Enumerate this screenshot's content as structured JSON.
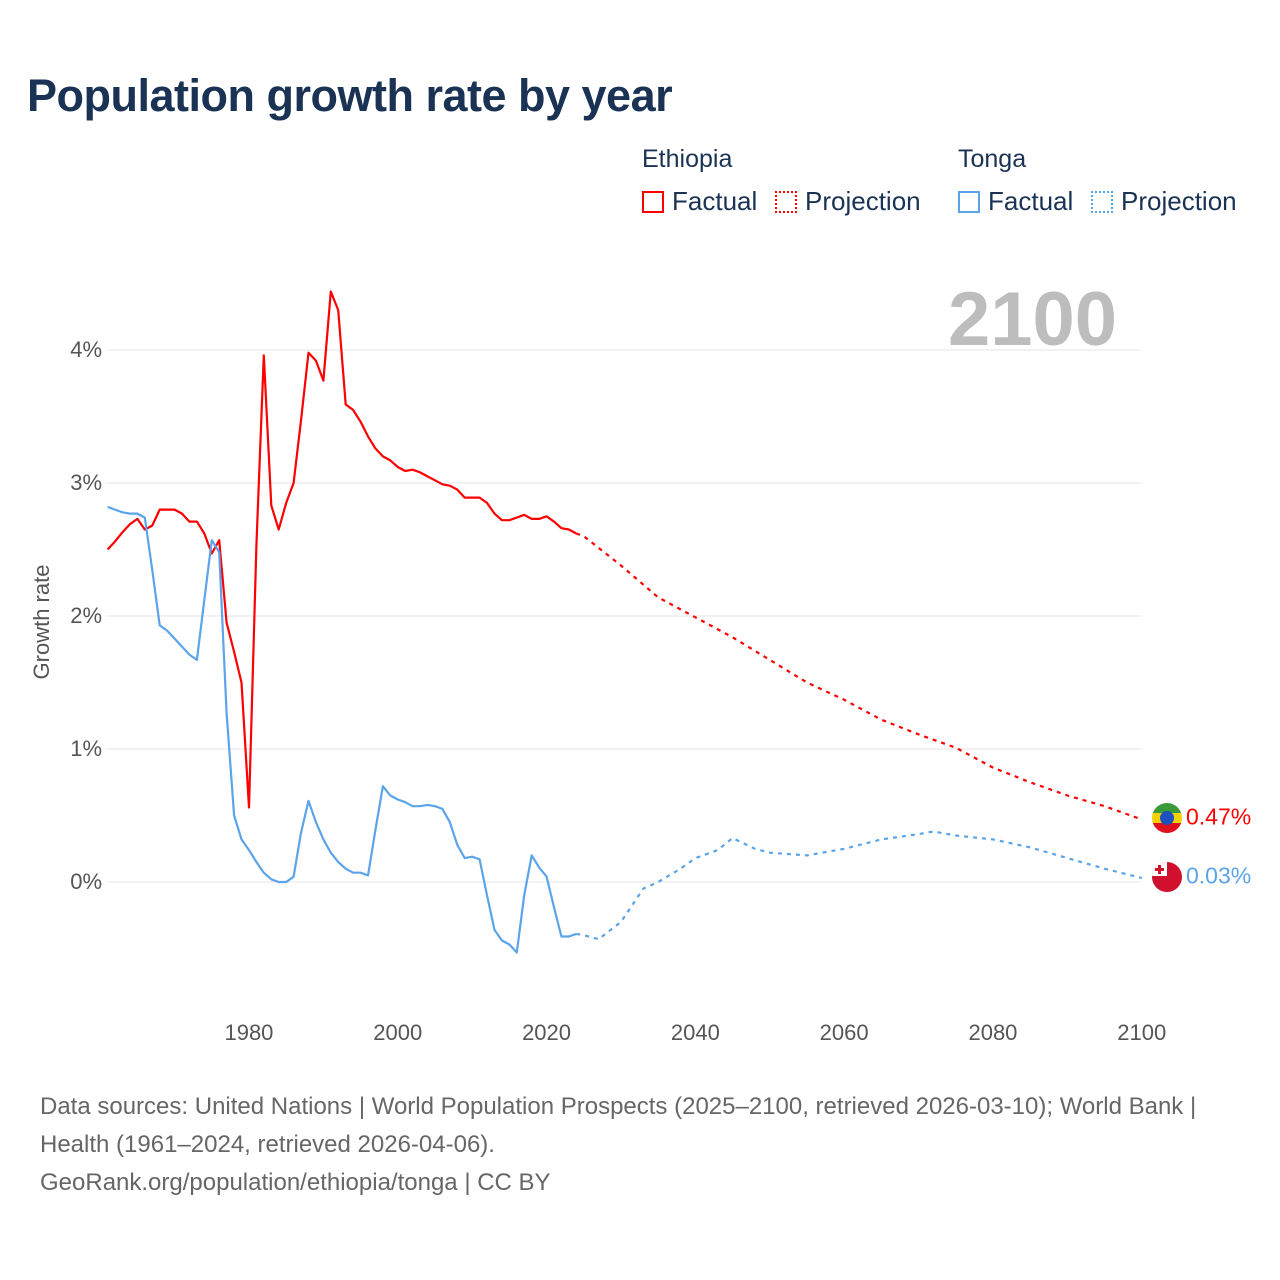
{
  "title": "Population growth rate by year",
  "legend": {
    "groups": [
      {
        "name": "Ethiopia",
        "factual": "Factual",
        "projection": "Projection",
        "color": "#ff0000"
      },
      {
        "name": "Tonga",
        "factual": "Factual",
        "projection": "Projection",
        "color": "#5ba4ea"
      }
    ]
  },
  "current_year": "2100",
  "end_labels": {
    "ethiopia": "0.47%",
    "tonga": "0.03%"
  },
  "footer": {
    "sources": "Data sources: United Nations | World Population Prospects (2025–2100, retrieved 2026-03-10); World Bank | Health (1961–2024, retrieved 2026-04-06).",
    "link": "GeoRank.org/population/ethiopia/tonga | CC BY"
  },
  "chart_data": {
    "type": "line",
    "title": "Population growth rate by year",
    "xlabel": "",
    "ylabel": "Growth rate",
    "xlim": [
      1961,
      2100
    ],
    "ylim": [
      -0.9,
      4.9
    ],
    "grid": true,
    "yticks": [
      {
        "v": 0,
        "label": "0%"
      },
      {
        "v": 1,
        "label": "1%"
      },
      {
        "v": 2,
        "label": "2%"
      },
      {
        "v": 3,
        "label": "3%"
      },
      {
        "v": 4,
        "label": "4%"
      }
    ],
    "xticks": [
      {
        "v": 1980,
        "label": "1980"
      },
      {
        "v": 2000,
        "label": "2000"
      },
      {
        "v": 2020,
        "label": "2020"
      },
      {
        "v": 2040,
        "label": "2040"
      },
      {
        "v": 2060,
        "label": "2060"
      },
      {
        "v": 2080,
        "label": "2080"
      },
      {
        "v": 2100,
        "label": "2100"
      }
    ],
    "legend_position": "top-right",
    "series": [
      {
        "name": "Ethiopia Factual",
        "color": "#ff0000",
        "dashed": false,
        "x": [
          1961,
          1962,
          1963,
          1964,
          1965,
          1966,
          1967,
          1968,
          1969,
          1970,
          1971,
          1972,
          1973,
          1974,
          1975,
          1976,
          1977,
          1978,
          1979,
          1980,
          1981,
          1982,
          1983,
          1984,
          1985,
          1986,
          1987,
          1988,
          1989,
          1990,
          1991,
          1992,
          1993,
          1994,
          1995,
          1996,
          1997,
          1998,
          1999,
          2000,
          2001,
          2002,
          2003,
          2004,
          2005,
          2006,
          2007,
          2008,
          2009,
          2010,
          2011,
          2012,
          2013,
          2014,
          2015,
          2016,
          2017,
          2018,
          2019,
          2020,
          2021,
          2022,
          2023,
          2024
        ],
        "y": [
          2.5,
          2.56,
          2.63,
          2.69,
          2.73,
          2.65,
          2.68,
          2.8,
          2.8,
          2.8,
          2.77,
          2.71,
          2.71,
          2.62,
          2.47,
          2.57,
          1.95,
          1.73,
          1.5,
          0.56,
          2.53,
          3.96,
          2.83,
          2.65,
          2.85,
          3.0,
          3.47,
          3.98,
          3.92,
          3.77,
          4.44,
          4.3,
          3.59,
          3.55,
          3.46,
          3.35,
          3.26,
          3.2,
          3.17,
          3.12,
          3.09,
          3.1,
          3.08,
          3.05,
          3.02,
          2.99,
          2.98,
          2.95,
          2.89,
          2.89,
          2.89,
          2.85,
          2.77,
          2.72,
          2.72,
          2.74,
          2.76,
          2.73,
          2.73,
          2.75,
          2.71,
          2.66,
          2.65,
          2.62
        ]
      },
      {
        "name": "Ethiopia Projection",
        "color": "#ff0000",
        "dashed": true,
        "x": [
          2024,
          2025,
          2030,
          2035,
          2040,
          2045,
          2050,
          2055,
          2060,
          2065,
          2070,
          2075,
          2080,
          2085,
          2090,
          2095,
          2100
        ],
        "y": [
          2.62,
          2.6,
          2.38,
          2.14,
          1.99,
          1.84,
          1.67,
          1.5,
          1.37,
          1.22,
          1.11,
          1.01,
          0.86,
          0.75,
          0.65,
          0.57,
          0.47
        ]
      },
      {
        "name": "Tonga Factual",
        "color": "#5ba4ea",
        "dashed": false,
        "x": [
          1961,
          1962,
          1963,
          1964,
          1965,
          1966,
          1967,
          1968,
          1969,
          1970,
          1971,
          1972,
          1973,
          1974,
          1975,
          1976,
          1977,
          1978,
          1979,
          1980,
          1981,
          1982,
          1983,
          1984,
          1985,
          1986,
          1987,
          1988,
          1989,
          1990,
          1991,
          1992,
          1993,
          1994,
          1995,
          1996,
          1997,
          1998,
          1999,
          2000,
          2001,
          2002,
          2003,
          2004,
          2005,
          2006,
          2007,
          2008,
          2009,
          2010,
          2011,
          2012,
          2013,
          2014,
          2015,
          2016,
          2017,
          2018,
          2019,
          2020,
          2021,
          2022,
          2023,
          2024
        ],
        "y": [
          2.82,
          2.8,
          2.78,
          2.77,
          2.77,
          2.74,
          2.35,
          1.93,
          1.89,
          1.83,
          1.77,
          1.71,
          1.67,
          2.12,
          2.57,
          2.48,
          1.27,
          0.5,
          0.32,
          0.24,
          0.15,
          0.07,
          0.02,
          0.0,
          0.0,
          0.04,
          0.37,
          0.61,
          0.45,
          0.32,
          0.22,
          0.15,
          0.1,
          0.07,
          0.07,
          0.05,
          0.39,
          0.72,
          0.65,
          0.62,
          0.6,
          0.57,
          0.57,
          0.58,
          0.57,
          0.55,
          0.45,
          0.28,
          0.18,
          0.19,
          0.17,
          -0.1,
          -0.36,
          -0.44,
          -0.47,
          -0.53,
          -0.1,
          0.2,
          0.11,
          0.04,
          -0.19,
          -0.41,
          -0.41,
          -0.39
        ]
      },
      {
        "name": "Tonga Projection",
        "color": "#5ba4ea",
        "dashed": true,
        "x": [
          2024,
          2025,
          2027,
          2030,
          2033,
          2035,
          2038,
          2040,
          2043,
          2045,
          2048,
          2050,
          2055,
          2060,
          2065,
          2070,
          2072,
          2075,
          2080,
          2085,
          2090,
          2095,
          2100
        ],
        "y": [
          -0.39,
          -0.4,
          -0.43,
          -0.3,
          -0.05,
          0.0,
          0.1,
          0.18,
          0.24,
          0.33,
          0.25,
          0.22,
          0.2,
          0.25,
          0.32,
          0.36,
          0.38,
          0.35,
          0.32,
          0.26,
          0.18,
          0.1,
          0.03
        ]
      }
    ]
  }
}
